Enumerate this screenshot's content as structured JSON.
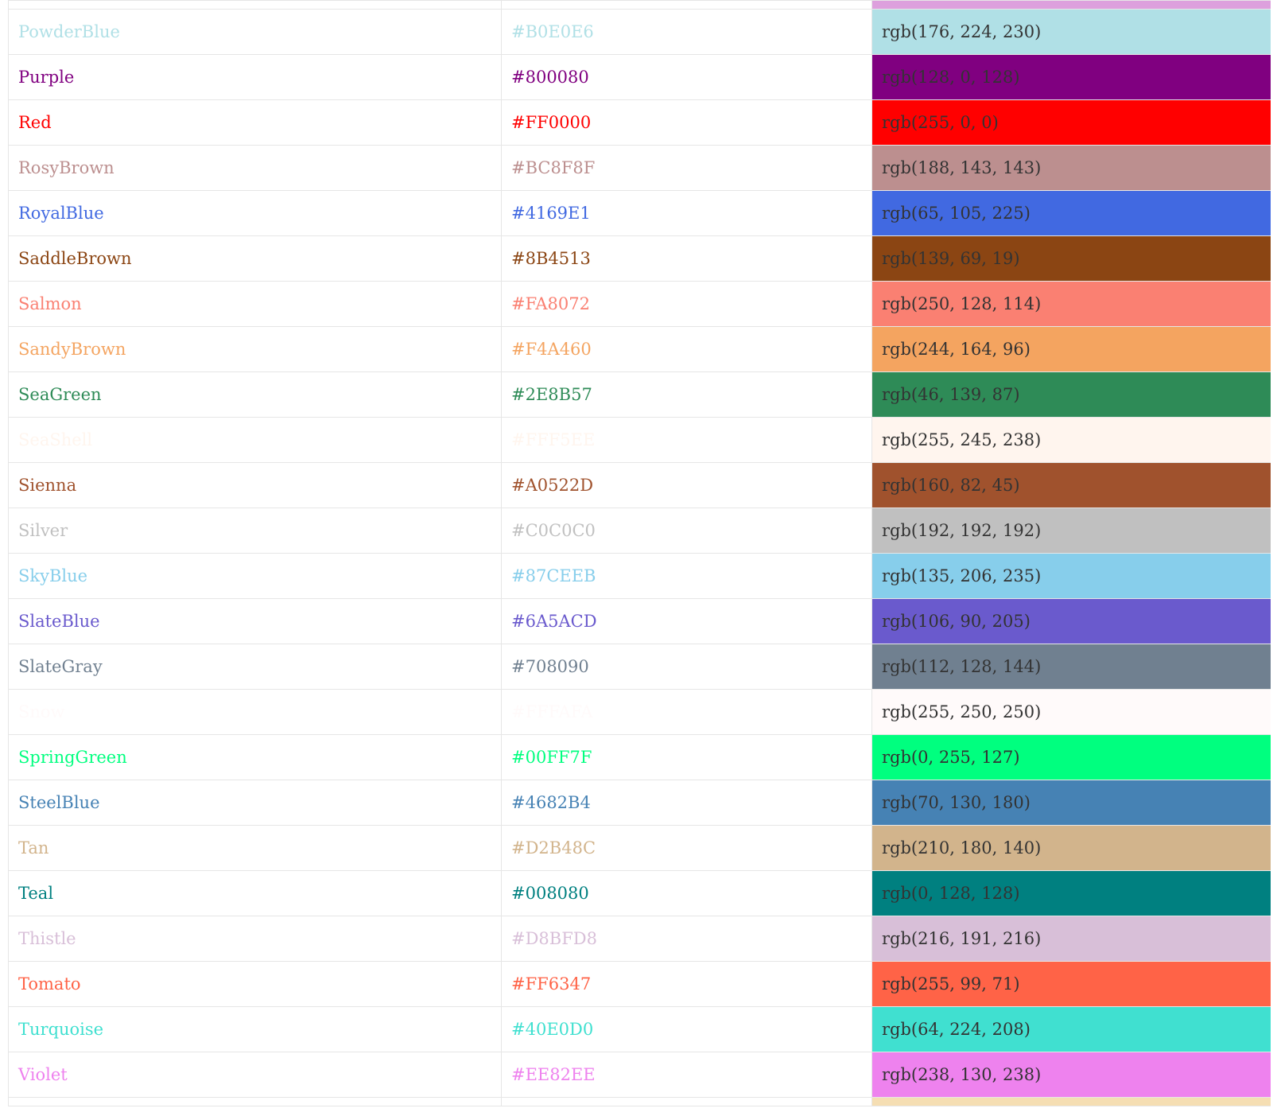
{
  "table": {
    "top_partial_swatch_color": "#DDA0DD",
    "bottom_partial_swatch_color": "#F5DEB3",
    "rows": [
      {
        "name": "PowderBlue",
        "hex": "#B0E0E6",
        "rgb": "rgb(176, 224, 230)",
        "color": "#B0E0E6"
      },
      {
        "name": "Purple",
        "hex": "#800080",
        "rgb": "rgb(128, 0, 128)",
        "color": "#800080"
      },
      {
        "name": "Red",
        "hex": "#FF0000",
        "rgb": "rgb(255, 0, 0)",
        "color": "#FF0000"
      },
      {
        "name": "RosyBrown",
        "hex": "#BC8F8F",
        "rgb": "rgb(188, 143, 143)",
        "color": "#BC8F8F"
      },
      {
        "name": "RoyalBlue",
        "hex": "#4169E1",
        "rgb": "rgb(65, 105, 225)",
        "color": "#4169E1"
      },
      {
        "name": "SaddleBrown",
        "hex": "#8B4513",
        "rgb": "rgb(139, 69, 19)",
        "color": "#8B4513"
      },
      {
        "name": "Salmon",
        "hex": "#FA8072",
        "rgb": "rgb(250, 128, 114)",
        "color": "#FA8072"
      },
      {
        "name": "SandyBrown",
        "hex": "#F4A460",
        "rgb": "rgb(244, 164, 96)",
        "color": "#F4A460"
      },
      {
        "name": "SeaGreen",
        "hex": "#2E8B57",
        "rgb": "rgb(46, 139, 87)",
        "color": "#2E8B57"
      },
      {
        "name": "SeaShell",
        "hex": "#FFF5EE",
        "rgb": "rgb(255, 245, 238)",
        "color": "#FFF5EE"
      },
      {
        "name": "Sienna",
        "hex": "#A0522D",
        "rgb": "rgb(160, 82, 45)",
        "color": "#A0522D"
      },
      {
        "name": "Silver",
        "hex": "#C0C0C0",
        "rgb": "rgb(192, 192, 192)",
        "color": "#C0C0C0"
      },
      {
        "name": "SkyBlue",
        "hex": "#87CEEB",
        "rgb": "rgb(135, 206, 235)",
        "color": "#87CEEB"
      },
      {
        "name": "SlateBlue",
        "hex": "#6A5ACD",
        "rgb": "rgb(106, 90, 205)",
        "color": "#6A5ACD"
      },
      {
        "name": "SlateGray",
        "hex": "#708090",
        "rgb": "rgb(112, 128, 144)",
        "color": "#708090"
      },
      {
        "name": "Snow",
        "hex": "#FFFAFA",
        "rgb": "rgb(255, 250, 250)",
        "color": "#FFFAFA"
      },
      {
        "name": "SpringGreen",
        "hex": "#00FF7F",
        "rgb": "rgb(0, 255, 127)",
        "color": "#00FF7F"
      },
      {
        "name": "SteelBlue",
        "hex": "#4682B4",
        "rgb": "rgb(70, 130, 180)",
        "color": "#4682B4"
      },
      {
        "name": "Tan",
        "hex": "#D2B48C",
        "rgb": "rgb(210, 180, 140)",
        "color": "#D2B48C"
      },
      {
        "name": "Teal",
        "hex": "#008080",
        "rgb": "rgb(0, 128, 128)",
        "color": "#008080"
      },
      {
        "name": "Thistle",
        "hex": "#D8BFD8",
        "rgb": "rgb(216, 191, 216)",
        "color": "#D8BFD8"
      },
      {
        "name": "Tomato",
        "hex": "#FF6347",
        "rgb": "rgb(255, 99, 71)",
        "color": "#FF6347"
      },
      {
        "name": "Turquoise",
        "hex": "#40E0D0",
        "rgb": "rgb(64, 224, 208)",
        "color": "#40E0D0"
      },
      {
        "name": "Violet",
        "hex": "#EE82EE",
        "rgb": "rgb(238, 130, 238)",
        "color": "#EE82EE"
      }
    ]
  }
}
